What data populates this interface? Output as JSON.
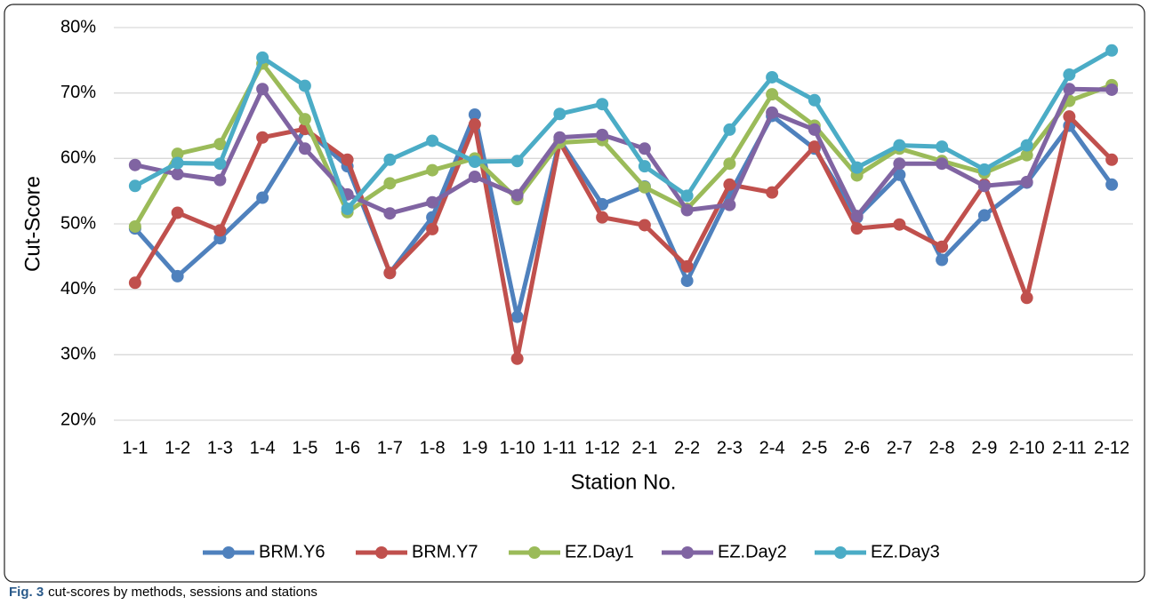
{
  "chart_data": {
    "type": "line",
    "y_label": "Cut-Score",
    "x_label": "Station No.",
    "categories": [
      "1-1",
      "1-2",
      "1-3",
      "1-4",
      "1-5",
      "1-6",
      "1-7",
      "1-8",
      "1-9",
      "1-10",
      "1-11",
      "1-12",
      "2-1",
      "2-2",
      "2-3",
      "2-4",
      "2-5",
      "2-6",
      "2-7",
      "2-8",
      "2-9",
      "2-10",
      "2-11",
      "2-12"
    ],
    "series": [
      {
        "name": "BRM.Y6",
        "color": "#4f81bd",
        "values": [
          49.3,
          42.0,
          47.8,
          54.0,
          64.5,
          58.8,
          42.5,
          51.0,
          66.7,
          35.8,
          62.8,
          53.0,
          55.7,
          41.3,
          54.5,
          66.5,
          61.5,
          51.0,
          57.5,
          44.5,
          51.3,
          56.3,
          65.0,
          56.0
        ]
      },
      {
        "name": "BRM.Y7",
        "color": "#c0504d",
        "values": [
          41.0,
          51.7,
          49.0,
          63.2,
          64.5,
          59.8,
          42.5,
          49.2,
          65.2,
          29.4,
          62.5,
          51.0,
          49.8,
          43.5,
          56.0,
          54.8,
          61.8,
          49.3,
          49.9,
          46.5,
          56.0,
          38.7,
          66.4,
          59.8
        ]
      },
      {
        "name": "EZ.Day1",
        "color": "#9bbb59",
        "values": [
          49.6,
          60.7,
          62.2,
          74.5,
          66.0,
          51.8,
          56.2,
          58.2,
          60.0,
          53.8,
          62.4,
          62.8,
          55.6,
          52.3,
          59.2,
          69.8,
          65.0,
          57.4,
          61.5,
          59.6,
          57.8,
          60.5,
          68.8,
          71.2
        ]
      },
      {
        "name": "EZ.Day2",
        "color": "#8064a2",
        "values": [
          59.0,
          57.6,
          56.7,
          70.6,
          61.5,
          54.5,
          51.6,
          53.3,
          57.2,
          54.4,
          63.2,
          63.6,
          61.5,
          52.1,
          52.9,
          67.0,
          64.4,
          51.2,
          59.2,
          59.2,
          55.8,
          56.4,
          70.6,
          70.5
        ]
      },
      {
        "name": "EZ.Day3",
        "color": "#4bacc6",
        "values": [
          55.8,
          59.3,
          59.2,
          75.4,
          71.1,
          52.3,
          59.8,
          62.7,
          59.5,
          59.6,
          66.8,
          68.3,
          58.8,
          54.3,
          64.4,
          72.4,
          68.9,
          58.6,
          62.0,
          61.8,
          58.3,
          62.0,
          72.8,
          76.5
        ]
      }
    ],
    "ylim": [
      20,
      80
    ],
    "yticks": [
      {
        "value": 20,
        "label": "20%"
      },
      {
        "value": 30,
        "label": "30%"
      },
      {
        "value": 40,
        "label": "40%"
      },
      {
        "value": 50,
        "label": "50%"
      },
      {
        "value": 60,
        "label": "60%"
      },
      {
        "value": 70,
        "label": "70%"
      },
      {
        "value": 80,
        "label": "80%"
      }
    ],
    "grid": true,
    "legend": "bottom"
  },
  "caption": {
    "label": "Fig. 3",
    "text": "cut-scores by methods, sessions and stations"
  }
}
